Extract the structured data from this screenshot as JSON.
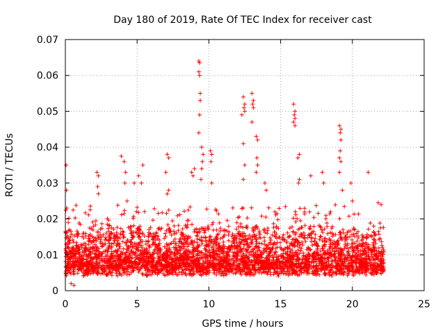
{
  "chart_data": {
    "type": "scatter",
    "title": "Day 180 of 2019, Rate Of TEC Index for receiver cast",
    "xlabel": "GPS time / hours",
    "ylabel": "ROTI / TECUs",
    "xlim": [
      0,
      25
    ],
    "ylim": [
      0,
      0.07
    ],
    "x_ticks": [
      0,
      5,
      10,
      15,
      20,
      25
    ],
    "x_tick_labels": [
      "0",
      "5",
      "10",
      "15",
      "20",
      "25"
    ],
    "y_ticks": [
      0,
      0.01,
      0.02,
      0.03,
      0.04,
      0.05,
      0.06,
      0.07
    ],
    "y_tick_labels": [
      "0",
      "0.01",
      "0.02",
      "0.03",
      "0.04",
      "0.05",
      "0.06",
      "0.07"
    ],
    "grid": true,
    "marker": "+",
    "color": "#ff0000",
    "series": [
      {
        "name": "ROTI",
        "note": "dense band of points between about 0.003 and 0.02 TECU/min from 0 to 22.2 hours",
        "points": [
          [
            0.05,
            0.035
          ],
          [
            0.08,
            0.028
          ],
          [
            0.1,
            0.023
          ],
          [
            0.2,
            0.019
          ],
          [
            0.3,
            0.017
          ],
          [
            0.4,
            0.002
          ],
          [
            0.6,
            0.0015
          ],
          [
            2.2,
            0.033
          ],
          [
            2.3,
            0.032
          ],
          [
            2.25,
            0.029
          ],
          [
            2.3,
            0.027
          ],
          [
            3.9,
            0.0375
          ],
          [
            4.1,
            0.036
          ],
          [
            4.2,
            0.033
          ],
          [
            4.15,
            0.03
          ],
          [
            4.3,
            0.025
          ],
          [
            4.8,
            0.03
          ],
          [
            5.1,
            0.032
          ],
          [
            5.4,
            0.035
          ],
          [
            5.3,
            0.03
          ],
          [
            7.1,
            0.038
          ],
          [
            7.2,
            0.037
          ],
          [
            7.0,
            0.033
          ],
          [
            7.2,
            0.028
          ],
          [
            7.1,
            0.027
          ],
          [
            8.8,
            0.033
          ],
          [
            9.0,
            0.034
          ],
          [
            8.9,
            0.032
          ],
          [
            9.3,
            0.064
          ],
          [
            9.35,
            0.0635
          ],
          [
            9.3,
            0.061
          ],
          [
            9.35,
            0.06
          ],
          [
            9.4,
            0.055
          ],
          [
            9.4,
            0.053
          ],
          [
            9.35,
            0.049
          ],
          [
            9.3,
            0.044
          ],
          [
            9.5,
            0.04
          ],
          [
            9.6,
            0.038
          ],
          [
            9.55,
            0.036
          ],
          [
            9.5,
            0.034
          ],
          [
            9.45,
            0.031
          ],
          [
            10.1,
            0.039
          ],
          [
            10.2,
            0.038
          ],
          [
            10.15,
            0.036
          ],
          [
            10.2,
            0.03
          ],
          [
            12.4,
            0.054
          ],
          [
            12.5,
            0.052
          ],
          [
            12.45,
            0.051
          ],
          [
            12.5,
            0.05
          ],
          [
            12.3,
            0.049
          ],
          [
            12.4,
            0.041
          ],
          [
            12.5,
            0.035
          ],
          [
            12.4,
            0.031
          ],
          [
            13.0,
            0.055
          ],
          [
            13.1,
            0.053
          ],
          [
            13.05,
            0.052
          ],
          [
            13.1,
            0.051
          ],
          [
            13.0,
            0.047
          ],
          [
            13.3,
            0.043
          ],
          [
            13.4,
            0.042
          ],
          [
            13.35,
            0.037
          ],
          [
            13.4,
            0.035
          ],
          [
            13.3,
            0.033
          ],
          [
            13.9,
            0.03
          ],
          [
            14.0,
            0.028
          ],
          [
            15.9,
            0.052
          ],
          [
            16.0,
            0.05
          ],
          [
            15.95,
            0.049
          ],
          [
            16.0,
            0.048
          ],
          [
            15.9,
            0.047
          ],
          [
            16.0,
            0.046
          ],
          [
            16.3,
            0.038
          ],
          [
            16.2,
            0.037
          ],
          [
            16.3,
            0.031
          ],
          [
            16.25,
            0.03
          ],
          [
            17.1,
            0.032
          ],
          [
            17.9,
            0.033
          ],
          [
            18.0,
            0.03
          ],
          [
            19.1,
            0.046
          ],
          [
            19.2,
            0.045
          ],
          [
            19.15,
            0.044
          ],
          [
            19.2,
            0.042
          ],
          [
            19.15,
            0.039
          ],
          [
            19.1,
            0.037
          ],
          [
            19.2,
            0.036
          ],
          [
            19.1,
            0.033
          ],
          [
            19.3,
            0.028
          ],
          [
            19.9,
            0.03
          ],
          [
            20.0,
            0.025
          ],
          [
            21.1,
            0.033
          ],
          [
            21.8,
            0.0245
          ],
          [
            22.0,
            0.024
          ],
          [
            22.1,
            0.012
          ],
          [
            22.1,
            0.006
          ]
        ]
      }
    ]
  }
}
